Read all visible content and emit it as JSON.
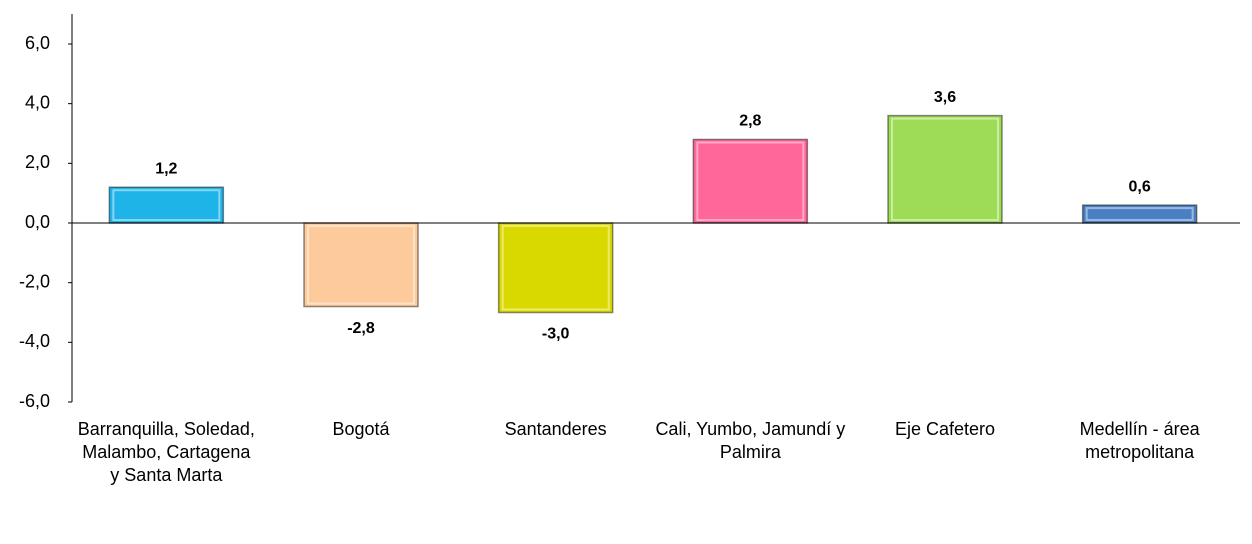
{
  "chart_data": {
    "type": "bar",
    "categories": [
      "Barranquilla, Soledad, Malambo, Cartagena y Santa Marta",
      "Bogotá",
      "Santanderes",
      "Cali, Yumbo, Jamundí y Palmira",
      "Eje Cafetero",
      "Medellín - área metropolitana"
    ],
    "values": [
      1.2,
      -2.8,
      -3.0,
      2.8,
      3.6,
      0.6
    ],
    "value_labels": [
      "1,2",
      "-2,8",
      "-3,0",
      "2,8",
      "3,6",
      "0,6"
    ],
    "colors": [
      "#1fb4e8",
      "#fdca9c",
      "#d9d900",
      "#ff6699",
      "#9edc58",
      "#4a7fc4"
    ],
    "ylim": [
      -6,
      6
    ],
    "yticks": [
      {
        "value": -6,
        "label": "-6,0"
      },
      {
        "value": -4,
        "label": "-4,0"
      },
      {
        "value": -2,
        "label": "-2,0"
      },
      {
        "value": 0,
        "label": "0,0"
      },
      {
        "value": 2,
        "label": "2,0"
      },
      {
        "value": 4,
        "label": "4,0"
      },
      {
        "value": 6,
        "label": "6,0"
      }
    ],
    "grid": false
  }
}
